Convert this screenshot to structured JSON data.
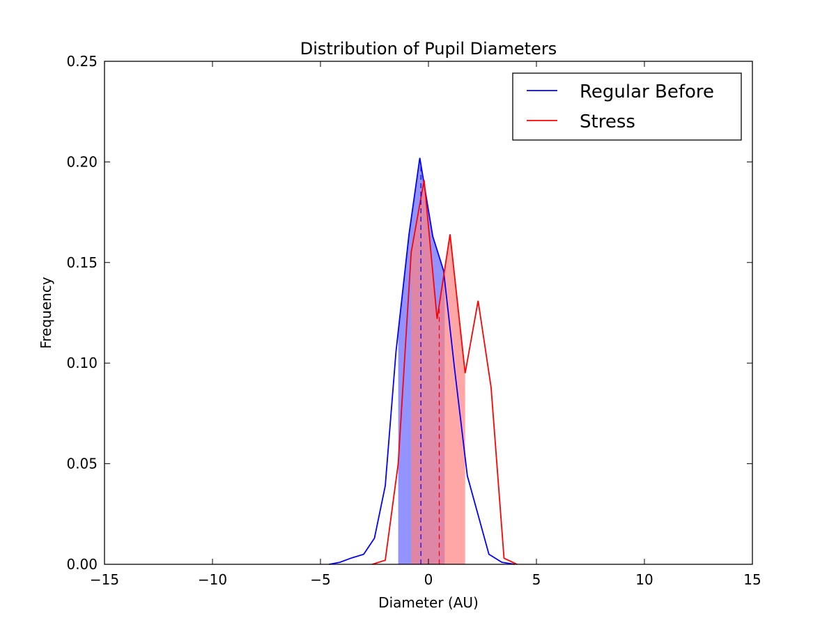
{
  "chart_data": {
    "type": "line",
    "title": "Distribution of Pupil Diameters",
    "xlabel": "Diameter (AU)",
    "ylabel": "Frequency",
    "xlim": [
      -15,
      15
    ],
    "ylim": [
      0,
      0.25
    ],
    "xticks": [
      -15,
      -10,
      -5,
      0,
      5,
      10,
      15
    ],
    "xtick_labels": [
      "−15",
      "−10",
      "−5",
      "0",
      "5",
      "10",
      "15"
    ],
    "yticks": [
      0,
      0.05,
      0.1,
      0.15,
      0.2,
      0.25
    ],
    "ytick_labels": [
      "0.00",
      "0.05",
      "0.10",
      "0.15",
      "0.20",
      "0.25"
    ],
    "grid": false,
    "legend_position": "top-right",
    "series": [
      {
        "name": "Regular Before",
        "color": "#0000ff",
        "x": [
          -4.6,
          -4.1,
          -3.6,
          -3.0,
          -2.5,
          -2.0,
          -1.5,
          -0.9,
          -0.4,
          0.2,
          0.7,
          1.2,
          1.8,
          2.8,
          3.4,
          4.0
        ],
        "y": [
          0.0,
          0.001,
          0.003,
          0.005,
          0.013,
          0.039,
          0.106,
          0.164,
          0.202,
          0.163,
          0.146,
          0.098,
          0.044,
          0.005,
          0.001,
          0.0
        ],
        "mean": -0.35,
        "shaded_interval": [
          -1.4,
          0.75
        ],
        "shade_color": "#8080ff"
      },
      {
        "name": "Stress",
        "color": "#ff0000",
        "x": [
          -2.6,
          -2.0,
          -1.4,
          -0.8,
          -0.2,
          0.4,
          1.0,
          1.7,
          2.3,
          2.9,
          3.5,
          4.1
        ],
        "y": [
          0.0,
          0.002,
          0.05,
          0.155,
          0.191,
          0.122,
          0.164,
          0.095,
          0.131,
          0.088,
          0.003,
          0.0
        ],
        "mean": 0.5,
        "shaded_interval": [
          -0.8,
          1.7
        ],
        "shade_color": "#ff8080"
      }
    ]
  }
}
